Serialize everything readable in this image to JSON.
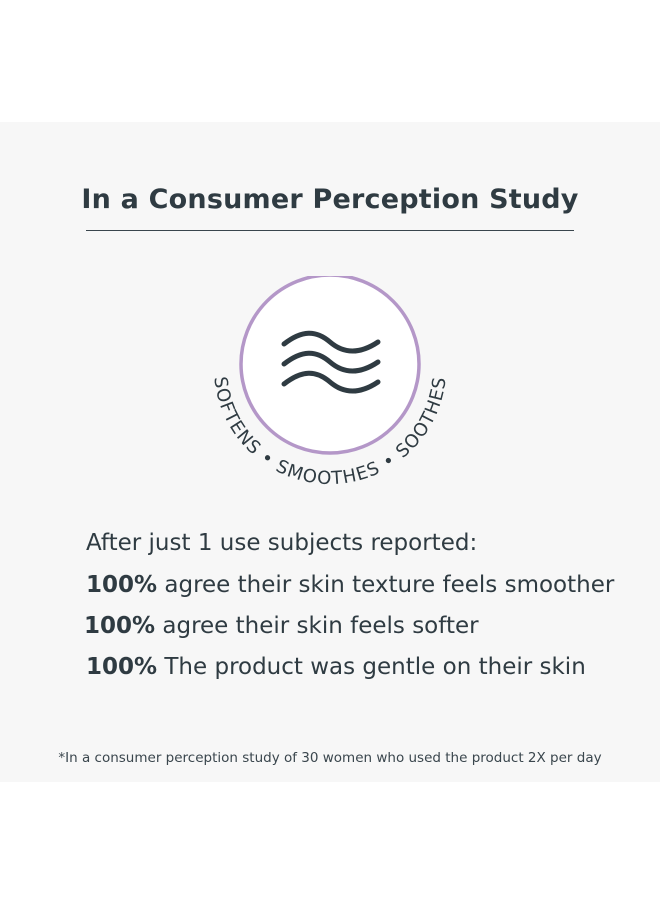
{
  "title": "In a Consumer Perception Study",
  "badge": {
    "icon": "wave-icon",
    "arc_text": "SOFTENS • SMOOTHES • SOOTHES",
    "ring_color": "#b497c8",
    "text_color": "#2f3b42"
  },
  "lead": "After just 1 use subjects reported:",
  "stats": [
    {
      "value": "100%",
      "text": "agree their skin texture feels smoother"
    },
    {
      "value": "100%",
      "text": "agree their skin feels softer"
    },
    {
      "value": "100%",
      "text": "The product was gentle on their skin"
    }
  ],
  "footnote": "*In a consumer perception study of 30 women who used the product 2X per day"
}
